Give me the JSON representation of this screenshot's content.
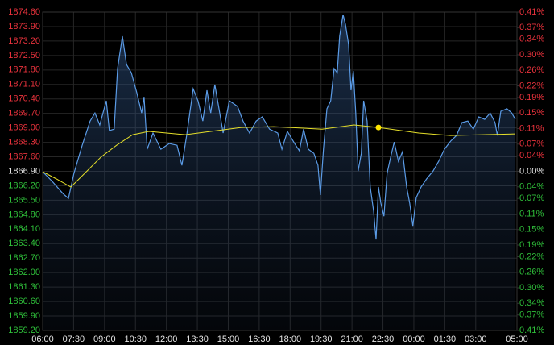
{
  "chart_data": {
    "type": "line",
    "colors": {
      "up": "#e8323c",
      "flat": "#e6e6e6",
      "down": "#2fbf3a"
    },
    "grid": true,
    "xlim": [
      0,
      1380
    ],
    "xticks": [
      {
        "value": 0,
        "label": "06:00"
      },
      {
        "value": 90,
        "label": "07:30"
      },
      {
        "value": 180,
        "label": "09:00"
      },
      {
        "value": 270,
        "label": "10:30"
      },
      {
        "value": 360,
        "label": "12:00"
      },
      {
        "value": 450,
        "label": "13:30"
      },
      {
        "value": 540,
        "label": "15:00"
      },
      {
        "value": 630,
        "label": "16:30"
      },
      {
        "value": 720,
        "label": "18:00"
      },
      {
        "value": 810,
        "label": "19:30"
      },
      {
        "value": 900,
        "label": "21:00"
      },
      {
        "value": 990,
        "label": "22:30"
      },
      {
        "value": 1080,
        "label": "00:00"
      },
      {
        "value": 1170,
        "label": "01:30"
      },
      {
        "value": 1260,
        "label": "03:00"
      },
      {
        "value": 1380,
        "label": "05:00"
      }
    ],
    "ylim": [
      1859.2,
      1874.6
    ],
    "yticks": [
      {
        "value": 1874.6,
        "label": "1874.60"
      },
      {
        "value": 1873.9,
        "label": "1873.90"
      },
      {
        "value": 1873.2,
        "label": "1873.20"
      },
      {
        "value": 1872.5,
        "label": "1872.50"
      },
      {
        "value": 1871.8,
        "label": "1871.80"
      },
      {
        "value": 1871.1,
        "label": "1871.10"
      },
      {
        "value": 1870.4,
        "label": "1870.40"
      },
      {
        "value": 1869.7,
        "label": "1869.70"
      },
      {
        "value": 1869.0,
        "label": "1869.00"
      },
      {
        "value": 1868.3,
        "label": "1868.30"
      },
      {
        "value": 1867.6,
        "label": "1867.60"
      },
      {
        "value": 1866.9,
        "label": "1866.90"
      },
      {
        "value": 1866.2,
        "label": "1866.20"
      },
      {
        "value": 1865.5,
        "label": "1865.50"
      },
      {
        "value": 1864.8,
        "label": "1864.80"
      },
      {
        "value": 1864.1,
        "label": "1864.10"
      },
      {
        "value": 1863.4,
        "label": "1863.40"
      },
      {
        "value": 1862.7,
        "label": "1862.70"
      },
      {
        "value": 1862.0,
        "label": "1862.00"
      },
      {
        "value": 1861.3,
        "label": "1861.30"
      },
      {
        "value": 1860.6,
        "label": "1860.60"
      },
      {
        "value": 1859.9,
        "label": "1859.90"
      },
      {
        "value": 1859.2,
        "label": "1859.20"
      }
    ],
    "y2lim": [
      -0.41,
      0.41
    ],
    "y2ticks": [
      {
        "value": 0.41,
        "label": "0.41%"
      },
      {
        "value": 0.37,
        "label": "0.37%"
      },
      {
        "value": 0.34,
        "label": "0.34%"
      },
      {
        "value": 0.3,
        "label": "0.30%"
      },
      {
        "value": 0.26,
        "label": "0.26%"
      },
      {
        "value": 0.22,
        "label": "0.22%"
      },
      {
        "value": 0.19,
        "label": "0.19%"
      },
      {
        "value": 0.15,
        "label": "0.15%"
      },
      {
        "value": 0.11,
        "label": "0.11%"
      },
      {
        "value": 0.07,
        "label": "0.07%"
      },
      {
        "value": 0.04,
        "label": "0.04%"
      },
      {
        "value": 0,
        "label": "0.00%"
      },
      {
        "value": -0.04,
        "label": "0.04%"
      },
      {
        "value": -0.07,
        "label": "0.07%"
      },
      {
        "value": -0.11,
        "label": "0.11%"
      },
      {
        "value": -0.15,
        "label": "0.15%"
      },
      {
        "value": -0.19,
        "label": "0.19%"
      },
      {
        "value": -0.22,
        "label": "0.22%"
      },
      {
        "value": -0.26,
        "label": "0.26%"
      },
      {
        "value": -0.3,
        "label": "0.30%"
      },
      {
        "value": -0.34,
        "label": "0.34%"
      },
      {
        "value": -0.37,
        "label": "0.37%"
      },
      {
        "value": -0.41,
        "label": "0.41%"
      }
    ],
    "series": [
      {
        "color": "#5b9be6",
        "area": true,
        "x": [
          0,
          28,
          59,
          75,
          91,
          115,
          138,
          152,
          166,
          185,
          194,
          208,
          218,
          232,
          244,
          258,
          274,
          288,
          295,
          304,
          321,
          344,
          368,
          391,
          405,
          419,
          438,
          452,
          466,
          478,
          489,
          501,
          513,
          525,
          543,
          567,
          583,
          602,
          621,
          639,
          660,
          684,
          696,
          712,
          733,
          747,
          759,
          773,
          789,
          801,
          808,
          817,
          827,
          838,
          848,
          857,
          864,
          874,
          881,
          890,
          897,
          904,
          911,
          918,
          927,
          934,
          944,
          953,
          963,
          970,
          977,
          984,
          993,
          1002,
          1014,
          1023,
          1035,
          1047,
          1059,
          1068,
          1077,
          1087,
          1101,
          1117,
          1136,
          1152,
          1169,
          1187,
          1204,
          1220,
          1237,
          1253,
          1269,
          1286,
          1302,
          1316,
          1323,
          1333,
          1351,
          1365,
          1375
        ],
        "values": [
          1866.88,
          1866.41,
          1865.82,
          1865.59,
          1866.8,
          1868.16,
          1869.33,
          1869.72,
          1869.14,
          1870.31,
          1868.87,
          1868.94,
          1871.87,
          1873.43,
          1872.06,
          1871.67,
          1870.7,
          1869.72,
          1870.5,
          1867.97,
          1868.75,
          1867.97,
          1868.24,
          1868.16,
          1867.19,
          1868.63,
          1870.89,
          1870.31,
          1869.33,
          1870.82,
          1869.72,
          1871.09,
          1869.92,
          1868.75,
          1870.31,
          1870.04,
          1869.33,
          1868.75,
          1869.33,
          1869.53,
          1868.94,
          1868.75,
          1867.97,
          1868.83,
          1868.24,
          1867.89,
          1868.94,
          1867.97,
          1867.77,
          1867.19,
          1865.75,
          1867.97,
          1869.92,
          1870.31,
          1871.87,
          1871.67,
          1873.43,
          1874.48,
          1874.01,
          1873.04,
          1870.82,
          1871.75,
          1869.72,
          1866.92,
          1867.77,
          1870.31,
          1869.33,
          1866.14,
          1864.97,
          1863.6,
          1866.14,
          1865.36,
          1864.73,
          1866.8,
          1867.7,
          1868.32,
          1867.38,
          1867.85,
          1866.14,
          1865.36,
          1864.26,
          1865.63,
          1866.14,
          1866.53,
          1866.92,
          1867.38,
          1867.97,
          1868.36,
          1868.63,
          1869.26,
          1869.33,
          1868.94,
          1869.53,
          1869.41,
          1869.72,
          1869.26,
          1868.63,
          1869.8,
          1869.92,
          1869.72,
          1869.41
        ]
      },
      {
        "color": "#e6e02a",
        "area": false,
        "marker_index": 14,
        "x": [
          0,
          40,
          82,
          122,
          169,
          215,
          262,
          309,
          415,
          508,
          578,
          672,
          813,
          906,
          977,
          1094,
          1187,
          1281,
          1375
        ],
        "values": [
          1866.88,
          1866.53,
          1866.14,
          1866.8,
          1867.58,
          1868.16,
          1868.67,
          1868.83,
          1868.67,
          1868.87,
          1869.02,
          1869.06,
          1868.94,
          1869.14,
          1869.02,
          1868.75,
          1868.63,
          1868.67,
          1868.71
        ]
      }
    ]
  }
}
